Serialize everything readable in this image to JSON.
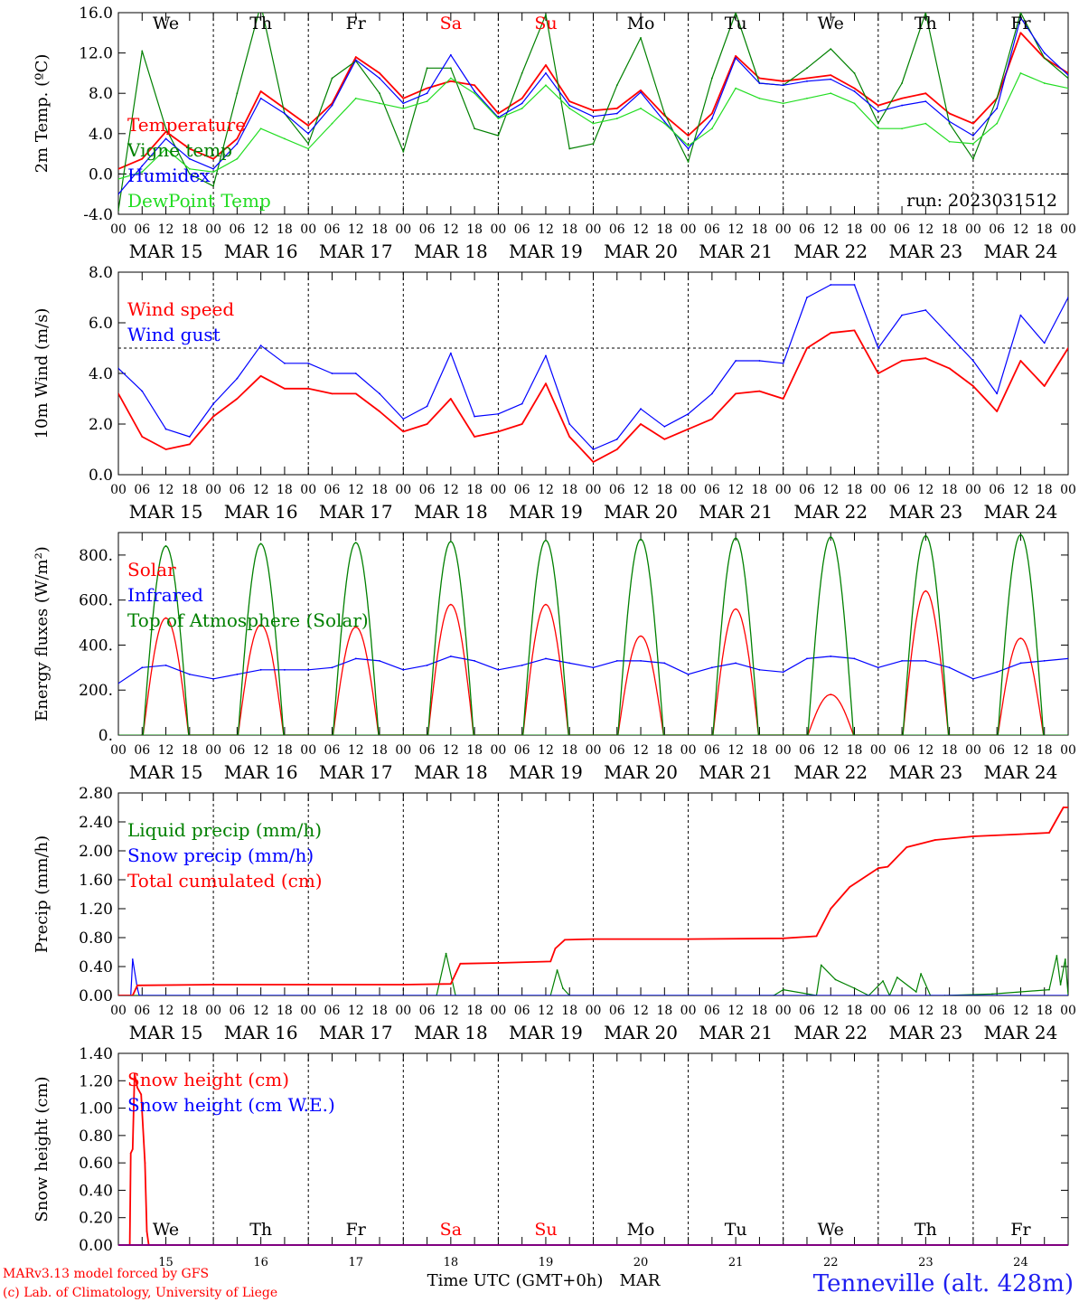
{
  "colors": {
    "red": "#ff0000",
    "green": "#008000",
    "blue": "#0000ff",
    "lightgreen": "#22dd22",
    "grid": "#000000",
    "title": "#1f1ff0"
  },
  "days": {
    "names": [
      "We",
      "Th",
      "Fr",
      "Sa",
      "Su",
      "Mo",
      "Tu",
      "We",
      "Th",
      "Fr"
    ],
    "weekend": [
      false,
      false,
      false,
      true,
      true,
      false,
      false,
      false,
      false,
      false
    ],
    "dates": [
      "MAR 15",
      "MAR 16",
      "MAR 17",
      "MAR 18",
      "MAR 19",
      "MAR 20",
      "MAR 21",
      "MAR 22",
      "MAR 23",
      "MAR 24"
    ],
    "numbers": [
      "15",
      "16",
      "17",
      "18",
      "19",
      "20",
      "21",
      "22",
      "23",
      "24"
    ],
    "hour_ticks": [
      "00",
      "06",
      "12",
      "18"
    ],
    "final_tick": "00"
  },
  "footer": {
    "xlabel": "Time UTC (GMT+0h)",
    "month": "MAR",
    "credit1": "MARv3.13 model forced by GFS",
    "credit2": "(c) Lab. of Climatology, University of Liege",
    "station": "Tenneville (alt. 428m)"
  },
  "chart_data": [
    {
      "type": "line",
      "ylabel": "2m Temp. (ºC)",
      "ylim": [
        -4.0,
        16.0
      ],
      "yticks": [
        "-4.0",
        "0.0",
        "4.0",
        "8.0",
        "12.0",
        "16.0"
      ],
      "ytick_values": [
        -4,
        0,
        4,
        8,
        12,
        16
      ],
      "reference_line": 0,
      "annotation": "run: 2023031512",
      "x_days": [
        0,
        0.25,
        0.5,
        0.75,
        1,
        1.25,
        1.5,
        1.75,
        2,
        2.25,
        2.5,
        2.75,
        3,
        3.25,
        3.5,
        3.75,
        4,
        4.25,
        4.5,
        4.75,
        5,
        5.25,
        5.5,
        5.75,
        6,
        6.25,
        6.5,
        6.75,
        7,
        7.25,
        7.5,
        7.75,
        8,
        8.25,
        8.5,
        8.75,
        9,
        9.25,
        9.5,
        9.75,
        10
      ],
      "series": [
        {
          "name": "Temperature",
          "color": "red",
          "values": [
            0.5,
            1.5,
            4.2,
            2.5,
            1.5,
            3.5,
            8.2,
            6.5,
            4.8,
            7.0,
            11.6,
            10.0,
            7.5,
            8.5,
            9.2,
            8.8,
            6.0,
            7.5,
            10.8,
            7.2,
            6.3,
            6.5,
            8.3,
            5.8,
            3.8,
            6.0,
            11.7,
            9.5,
            9.2,
            9.5,
            9.8,
            8.5,
            6.8,
            7.5,
            8.0,
            6.0,
            5.0,
            7.5,
            14.0,
            11.5,
            10.0
          ]
        },
        {
          "name": "Vigne temp",
          "color": "green",
          "values": [
            -3.6,
            12.2,
            4.5,
            0.0,
            -1.2,
            8.0,
            16.8,
            6.0,
            3.0,
            9.5,
            11.2,
            8.0,
            2.2,
            10.5,
            10.5,
            4.5,
            3.8,
            10.0,
            15.8,
            2.5,
            3.0,
            8.8,
            13.5,
            6.0,
            1.2,
            9.5,
            16.0,
            9.0,
            8.8,
            10.5,
            12.4,
            10.0,
            5.0,
            9.0,
            16.0,
            5.0,
            1.5,
            7.5,
            16.0,
            11.5,
            9.5
          ]
        },
        {
          "name": "Humidex",
          "color": "blue",
          "values": [
            -2.0,
            0.8,
            3.5,
            1.5,
            0.5,
            3.0,
            7.5,
            6.0,
            4.0,
            6.8,
            11.3,
            9.5,
            7.0,
            8.0,
            11.8,
            8.2,
            5.6,
            7.0,
            10.0,
            6.8,
            5.7,
            6.0,
            8.1,
            5.2,
            2.5,
            5.5,
            11.5,
            9.0,
            8.8,
            9.2,
            9.4,
            8.2,
            6.2,
            6.8,
            7.2,
            5.2,
            3.8,
            6.5,
            15.5,
            12.0,
            9.8
          ]
        },
        {
          "name": "DewPoint Temp",
          "color": "lightgreen",
          "values": [
            -0.5,
            0.2,
            2.5,
            0.5,
            0.2,
            1.5,
            4.5,
            3.5,
            2.5,
            5.0,
            7.5,
            7.0,
            6.5,
            7.2,
            9.5,
            8.0,
            5.5,
            6.5,
            8.8,
            6.5,
            5.0,
            5.5,
            6.5,
            5.0,
            2.8,
            4.5,
            8.5,
            7.5,
            7.0,
            7.5,
            8.0,
            7.0,
            4.5,
            4.5,
            5.0,
            3.2,
            3.0,
            5.0,
            10.0,
            9.0,
            8.5
          ]
        }
      ]
    },
    {
      "type": "line",
      "ylabel": "10m Wind (m/s)",
      "ylim": [
        0.0,
        8.0
      ],
      "yticks": [
        "0.0",
        "2.0",
        "4.0",
        "6.0",
        "8.0"
      ],
      "ytick_values": [
        0,
        2,
        4,
        6,
        8
      ],
      "reference_line": 5,
      "x_days": [
        0,
        0.25,
        0.5,
        0.75,
        1,
        1.25,
        1.5,
        1.75,
        2,
        2.25,
        2.5,
        2.75,
        3,
        3.25,
        3.5,
        3.75,
        4,
        4.25,
        4.5,
        4.75,
        5,
        5.25,
        5.5,
        5.75,
        6,
        6.25,
        6.5,
        6.75,
        7,
        7.25,
        7.5,
        7.75,
        8,
        8.25,
        8.5,
        8.75,
        9,
        9.25,
        9.5,
        9.75,
        10
      ],
      "series": [
        {
          "name": "Wind speed",
          "color": "red",
          "values": [
            3.2,
            1.5,
            1.0,
            1.2,
            2.3,
            3.0,
            3.9,
            3.4,
            3.4,
            3.2,
            3.2,
            2.5,
            1.7,
            2.0,
            3.0,
            1.5,
            1.7,
            2.0,
            3.6,
            1.5,
            0.5,
            1.0,
            2.0,
            1.4,
            1.8,
            2.2,
            3.2,
            3.3,
            3.0,
            5.0,
            5.6,
            5.7,
            4.0,
            4.5,
            4.6,
            4.2,
            3.5,
            2.5,
            4.5,
            3.5,
            5.0
          ]
        },
        {
          "name": "Wind gust",
          "color": "blue",
          "values": [
            4.2,
            3.3,
            1.8,
            1.5,
            2.8,
            3.8,
            5.1,
            4.4,
            4.4,
            4.0,
            4.0,
            3.2,
            2.2,
            2.7,
            4.8,
            2.3,
            2.4,
            2.8,
            4.7,
            2.0,
            1.0,
            1.4,
            2.6,
            1.9,
            2.4,
            3.2,
            4.5,
            4.5,
            4.4,
            7.0,
            7.5,
            7.5,
            5.0,
            6.3,
            6.5,
            5.5,
            4.5,
            3.2,
            6.3,
            5.2,
            7.0
          ]
        }
      ]
    },
    {
      "type": "line",
      "ylabel": "Energy fluxes (W/m²)",
      "ylim": [
        0,
        900
      ],
      "yticks": [
        "0.",
        "200.",
        "400.",
        "600.",
        "800."
      ],
      "ytick_values": [
        0,
        200,
        400,
        600,
        800
      ],
      "peak_days": [
        0.5,
        1.5,
        2.5,
        3.5,
        4.5,
        5.5,
        6.5,
        7.5,
        8.5,
        9.5
      ],
      "sun_halfwidth_days": 0.24,
      "series": [
        {
          "name": "Solar",
          "color": "red",
          "daily_peak_values": [
            520,
            490,
            480,
            580,
            580,
            440,
            560,
            180,
            640,
            430
          ]
        },
        {
          "name": "Infrared",
          "color": "blue",
          "x_days": [
            0,
            0.25,
            0.5,
            0.75,
            1,
            1.25,
            1.5,
            1.75,
            2,
            2.25,
            2.5,
            2.75,
            3,
            3.25,
            3.5,
            3.75,
            4,
            4.25,
            4.5,
            4.75,
            5,
            5.25,
            5.5,
            5.75,
            6,
            6.25,
            6.5,
            6.75,
            7,
            7.25,
            7.5,
            7.75,
            8,
            8.25,
            8.5,
            8.75,
            9,
            9.25,
            9.5,
            9.75,
            10
          ],
          "values": [
            230,
            300,
            310,
            270,
            250,
            270,
            290,
            290,
            290,
            300,
            340,
            330,
            290,
            310,
            350,
            330,
            290,
            310,
            340,
            320,
            300,
            330,
            330,
            320,
            270,
            300,
            320,
            290,
            280,
            340,
            350,
            340,
            300,
            330,
            330,
            300,
            250,
            280,
            320,
            330,
            340
          ]
        },
        {
          "name": "Top of Atmosphere (Solar)",
          "color": "green",
          "daily_peak_values": [
            840,
            850,
            855,
            860,
            865,
            870,
            875,
            880,
            885,
            890
          ]
        }
      ]
    },
    {
      "type": "line",
      "ylabel": "Precip (mm/h)",
      "ylim": [
        0.0,
        2.8
      ],
      "yticks": [
        "0.00",
        "0.40",
        "0.80",
        "1.20",
        "1.60",
        "2.00",
        "2.40",
        "2.80"
      ],
      "ytick_values": [
        0,
        0.4,
        0.8,
        1.2,
        1.6,
        2.0,
        2.4,
        2.8
      ],
      "series": [
        {
          "name": "Liquid precip (mm/h)",
          "color": "green",
          "x_days": [
            0,
            3.35,
            3.45,
            3.55,
            4.55,
            4.62,
            4.68,
            4.75,
            6.9,
            7.0,
            7.35,
            7.4,
            7.55,
            7.75,
            7.9,
            8.05,
            8.12,
            8.2,
            8.4,
            8.45,
            8.55,
            8.7,
            9.2,
            9.5,
            9.8,
            9.88,
            9.92,
            9.97,
            10
          ],
          "values": [
            0,
            0,
            0.58,
            0,
            0,
            0.35,
            0.1,
            0,
            0,
            0.08,
            0,
            0.42,
            0.22,
            0.1,
            0,
            0.2,
            0,
            0.25,
            0.05,
            0.3,
            0,
            0,
            0.02,
            0.05,
            0.08,
            0.55,
            0.15,
            0.5,
            0
          ]
        },
        {
          "name": "Snow precip (mm/h)",
          "color": "blue",
          "x_days": [
            0,
            0.13,
            0.15,
            0.2,
            0.22,
            10
          ],
          "values": [
            0,
            0,
            0.5,
            0.1,
            0,
            0
          ]
        },
        {
          "name": "Total cumulated (cm)",
          "color": "red",
          "x_days": [
            0,
            0.15,
            0.2,
            1,
            2,
            3,
            3.5,
            3.55,
            3.6,
            4,
            4.55,
            4.6,
            4.7,
            5,
            6,
            7,
            7.35,
            7.5,
            7.7,
            8,
            8.1,
            8.3,
            8.6,
            9,
            9.5,
            9.8,
            9.95,
            10
          ],
          "values": [
            0,
            0,
            0.14,
            0.15,
            0.15,
            0.15,
            0.16,
            0.3,
            0.44,
            0.45,
            0.47,
            0.65,
            0.77,
            0.78,
            0.78,
            0.79,
            0.82,
            1.2,
            1.5,
            1.76,
            1.78,
            2.05,
            2.15,
            2.2,
            2.23,
            2.25,
            2.6,
            2.6
          ]
        }
      ]
    },
    {
      "type": "line",
      "ylabel": "Snow height (cm)",
      "ylim": [
        0.0,
        1.4
      ],
      "yticks": [
        "0.00",
        "0.20",
        "0.40",
        "0.60",
        "0.80",
        "1.00",
        "1.20",
        "1.40"
      ],
      "ytick_values": [
        0,
        0.2,
        0.4,
        0.6,
        0.8,
        1.0,
        1.2,
        1.4
      ],
      "series": [
        {
          "name": "Snow height (cm)",
          "color": "red",
          "x_days": [
            0,
            0.12,
            0.13,
            0.15,
            0.17,
            0.2,
            0.24,
            0.28,
            0.3,
            0.32,
            10
          ],
          "values": [
            0,
            0,
            0.67,
            0.7,
            1.25,
            1.15,
            1.1,
            0.6,
            0.1,
            0,
            0
          ]
        },
        {
          "name": "Snow height (cm W.E.)",
          "color": "blue",
          "x_days": [
            0,
            10
          ],
          "values": [
            0,
            0
          ]
        }
      ]
    }
  ]
}
